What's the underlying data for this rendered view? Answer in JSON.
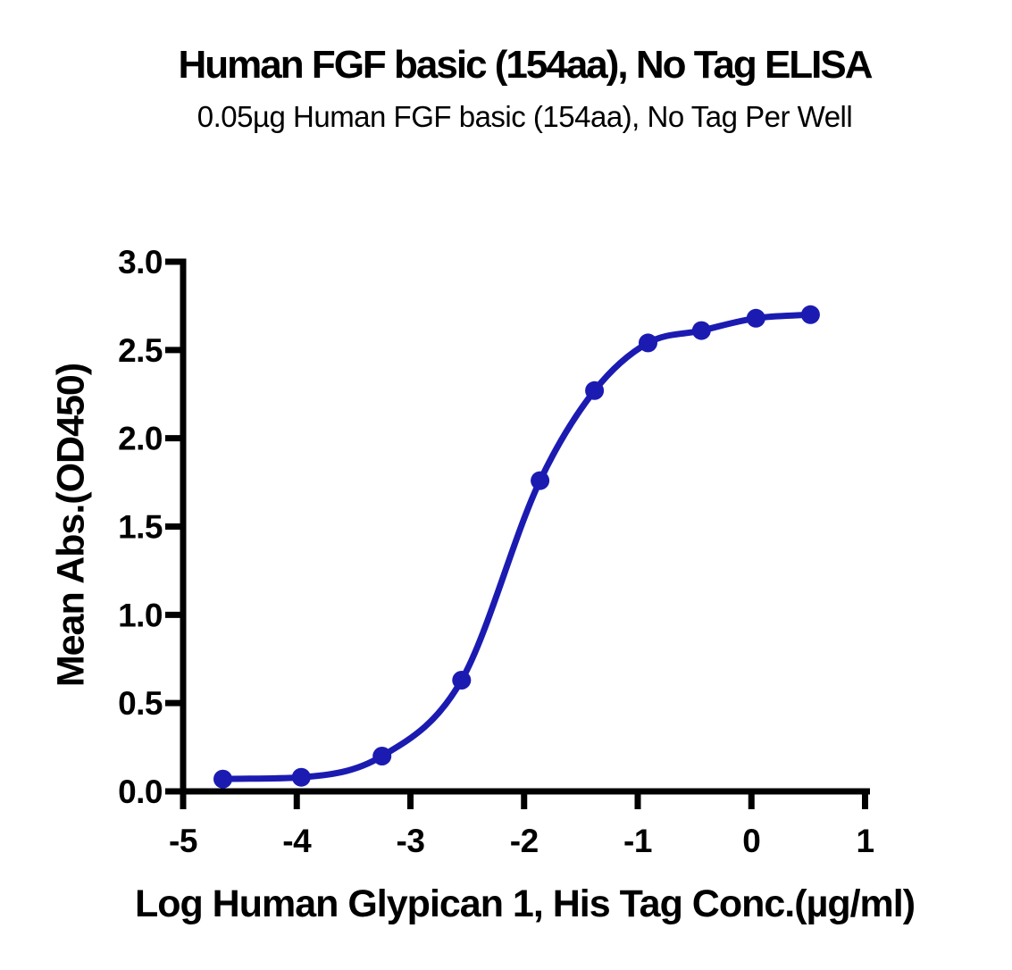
{
  "page": {
    "background": "#ffffff"
  },
  "chart_data": {
    "type": "line",
    "title": "Human FGF basic (154aa), No Tag ELISA",
    "subtitle": "0.05µg Human FGF basic (154aa), No Tag Per Well",
    "xlabel": "Log Human Glypican 1, His Tag Conc.(µg/ml)",
    "ylabel": "Mean Abs.(OD450)",
    "x": [
      -4.65,
      -3.96,
      -3.25,
      -2.55,
      -1.86,
      -1.38,
      -0.91,
      -0.44,
      0.04,
      0.52
    ],
    "y": [
      0.07,
      0.08,
      0.2,
      0.63,
      1.76,
      2.27,
      2.54,
      2.61,
      2.68,
      2.7
    ],
    "xlim": [
      -5,
      1
    ],
    "ylim": [
      0,
      3
    ],
    "xtick_values": [
      -5,
      -4,
      -3,
      -2,
      -1,
      0,
      1
    ],
    "xtick_labels": [
      "-5",
      "-4",
      "-3",
      "-2",
      "-1",
      "0",
      "1"
    ],
    "ytick_values": [
      0,
      0.5,
      1,
      1.5,
      2,
      2.5,
      3
    ],
    "ytick_labels": [
      "0.0",
      "0.5",
      "1.0",
      "1.5",
      "2.0",
      "2.5",
      "3.0"
    ],
    "grid": false,
    "legend": "none",
    "curve_style": "smooth-sigmoid-through-points",
    "marker": "filled-circle",
    "line_color": "#1B1BB2",
    "point_color": "#1B1BB2",
    "axis_color": "#000000",
    "text_color": "#000000"
  }
}
